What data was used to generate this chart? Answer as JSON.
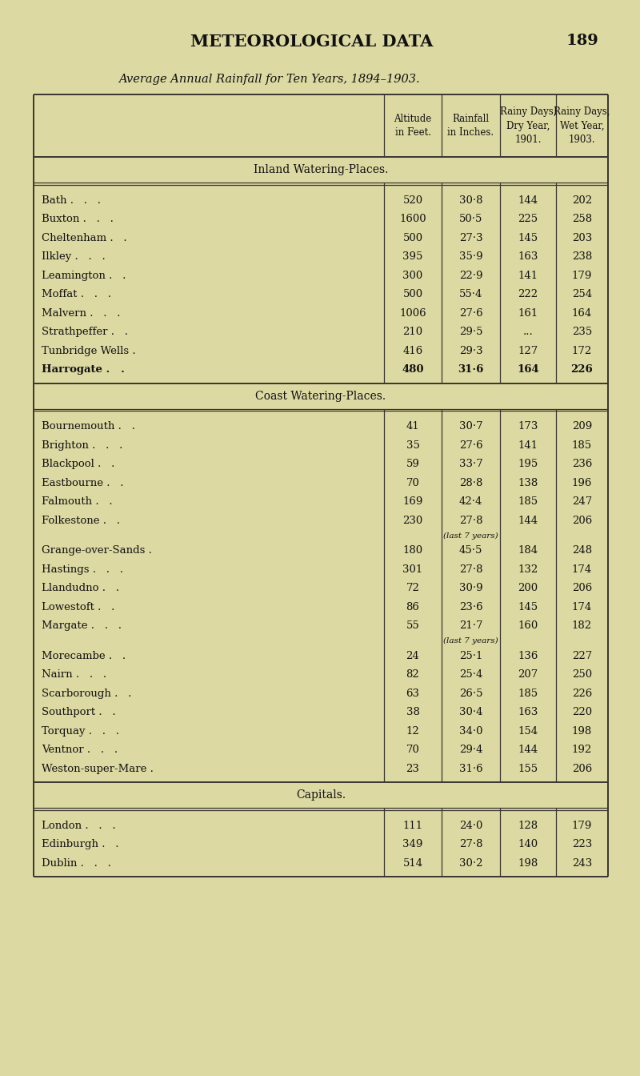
{
  "page_title": "METEOROLOGICAL DATA",
  "page_number": "189",
  "subtitle": "Average Annual Rainfall for Ten Years, 1894–1903.",
  "bg_color": "#ddd9a2",
  "inland_title": "Inland Watering-Places.",
  "inland_rows": [
    {
      "name": "Bath",
      "dots": " .   .   .",
      "alt": "520",
      "rain": "30·8",
      "dry": "144",
      "wet": "202",
      "bold": false
    },
    {
      "name": "Buxton",
      "dots": " .   .   .",
      "alt": "1600",
      "rain": "50·5",
      "dry": "225",
      "wet": "258",
      "bold": false
    },
    {
      "name": "Cheltenham",
      "dots": " .   .",
      "alt": "500",
      "rain": "27·3",
      "dry": "145",
      "wet": "203",
      "bold": false
    },
    {
      "name": "Ilkley",
      "dots": " .   .   .",
      "alt": "395",
      "rain": "35·9",
      "dry": "163",
      "wet": "238",
      "bold": false
    },
    {
      "name": "Leamington",
      "dots": " .   .",
      "alt": "300",
      "rain": "22·9",
      "dry": "141",
      "wet": "179",
      "bold": false
    },
    {
      "name": "Moffat",
      "dots": " .   .   .",
      "alt": "500",
      "rain": "55·4",
      "dry": "222",
      "wet": "254",
      "bold": false
    },
    {
      "name": "Malvern",
      "dots": " .   .   .",
      "alt": "1006",
      "rain": "27·6",
      "dry": "161",
      "wet": "164",
      "bold": false
    },
    {
      "name": "Strathpeffer",
      "dots": " .   .",
      "alt": "210",
      "rain": "29·5",
      "dry": "...",
      "wet": "235",
      "bold": false
    },
    {
      "name": "Tunbridge Wells",
      "dots": " .",
      "alt": "416",
      "rain": "29·3",
      "dry": "127",
      "wet": "172",
      "bold": false
    },
    {
      "name": "Harrogate",
      "dots": " .   .",
      "alt": "480",
      "rain": "31·6",
      "dry": "164",
      "wet": "226",
      "bold": true
    }
  ],
  "coast_title": "Coast Watering-Places.",
  "coast_rows": [
    {
      "name": "Bournemouth",
      "dots": " .   .",
      "alt": "41",
      "rain": "30·7",
      "dry": "173",
      "wet": "209",
      "note": ""
    },
    {
      "name": "Brighton",
      "dots": " .   .   .",
      "alt": "35",
      "rain": "27·6",
      "dry": "141",
      "wet": "185",
      "note": ""
    },
    {
      "name": "Blackpool",
      "dots": " .   .",
      "alt": "59",
      "rain": "33·7",
      "dry": "195",
      "wet": "236",
      "note": ""
    },
    {
      "name": "Eastbourne",
      "dots": " .   .",
      "alt": "70",
      "rain": "28·8",
      "dry": "138",
      "wet": "196",
      "note": ""
    },
    {
      "name": "Falmouth",
      "dots": " .   .",
      "alt": "169",
      "rain": "42·4",
      "dry": "185",
      "wet": "247",
      "note": ""
    },
    {
      "name": "Folkestone",
      "dots": " .   .",
      "alt": "230",
      "rain": "27·8",
      "dry": "144",
      "wet": "206",
      "note": ""
    },
    {
      "name": "Grange-over-Sands",
      "dots": " .",
      "alt": "180",
      "rain": "45·5",
      "dry": "184",
      "wet": "248",
      "note": "(last 7 years)"
    },
    {
      "name": "Hastings",
      "dots": " .   .   .",
      "alt": "301",
      "rain": "27·8",
      "dry": "132",
      "wet": "174",
      "note": ""
    },
    {
      "name": "Llandudno",
      "dots": " .   .",
      "alt": "72",
      "rain": "30·9",
      "dry": "200",
      "wet": "206",
      "note": ""
    },
    {
      "name": "Lowestoft",
      "dots": " .   .",
      "alt": "86",
      "rain": "23·6",
      "dry": "145",
      "wet": "174",
      "note": ""
    },
    {
      "name": "Margate",
      "dots": " .   .   .",
      "alt": "55",
      "rain": "21·7",
      "dry": "160",
      "wet": "182",
      "note": ""
    },
    {
      "name": "Morecambe",
      "dots": " .   .",
      "alt": "24",
      "rain": "25·1",
      "dry": "136",
      "wet": "227",
      "note": "(last 7 years)"
    },
    {
      "name": "Nairn",
      "dots": " .   .   .",
      "alt": "82",
      "rain": "25·4",
      "dry": "207",
      "wet": "250",
      "note": ""
    },
    {
      "name": "Scarborough",
      "dots": " .   .",
      "alt": "63",
      "rain": "26·5",
      "dry": "185",
      "wet": "226",
      "note": ""
    },
    {
      "name": "Southport",
      "dots": " .   .",
      "alt": "38",
      "rain": "30·4",
      "dry": "163",
      "wet": "220",
      "note": ""
    },
    {
      "name": "Torquay",
      "dots": " .   .   .",
      "alt": "12",
      "rain": "34·0",
      "dry": "154",
      "wet": "198",
      "note": ""
    },
    {
      "name": "Ventnor",
      "dots": " .   .   .",
      "alt": "70",
      "rain": "29·4",
      "dry": "144",
      "wet": "192",
      "note": ""
    },
    {
      "name": "Weston-super-Mare",
      "dots": " .",
      "alt": "23",
      "rain": "31·6",
      "dry": "155",
      "wet": "206",
      "note": ""
    }
  ],
  "capitals_title": "Capitals.",
  "capitals_rows": [
    {
      "name": "London",
      "dots": " .   .   .",
      "alt": "111",
      "rain": "24·0",
      "dry": "128",
      "wet": "179"
    },
    {
      "name": "Edinburgh",
      "dots": " .   .",
      "alt": "349",
      "rain": "27·8",
      "dry": "140",
      "wet": "223"
    },
    {
      "name": "Dublin",
      "dots": " .   .   .",
      "alt": "514",
      "rain": "30·2",
      "dry": "198",
      "wet": "243"
    }
  ]
}
